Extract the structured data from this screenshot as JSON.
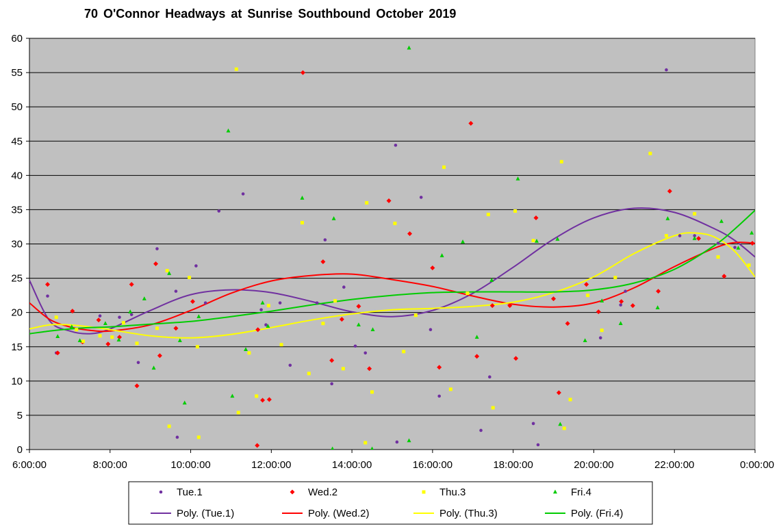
{
  "chart_data": {
    "type": "scatter",
    "title": "70 O'Connor Headways at Sunrise Southbound October 2019",
    "xlabel": "",
    "ylabel": "",
    "x_unit": "time of day",
    "xlim": [
      "6:00:00",
      "0:00:00"
    ],
    "ylim": [
      0,
      60
    ],
    "x_ticks": [
      "6:00:00",
      "8:00:00",
      "10:00:00",
      "12:00:00",
      "14:00:00",
      "16:00:00",
      "18:00:00",
      "20:00:00",
      "22:00:00",
      "0:00:00"
    ],
    "y_ticks": [
      "0",
      "5",
      "10",
      "15",
      "20",
      "25",
      "30",
      "35",
      "40",
      "45",
      "50",
      "55",
      "60"
    ],
    "grid": "horizontal",
    "plot_background": "#c0c0c0",
    "legend_position": "bottom",
    "series": [
      {
        "name": "Tue.1",
        "marker": "circle",
        "color": "#7030a0",
        "points": [
          [
            "6:27",
            22.4
          ],
          [
            "6:40",
            14.1
          ],
          [
            "7:20",
            15.7
          ],
          [
            "7:45",
            19.5
          ],
          [
            "7:57",
            15.4
          ],
          [
            "8:14",
            19.3
          ],
          [
            "8:32",
            19.7
          ],
          [
            "8:42",
            12.7
          ],
          [
            "9:10",
            29.3
          ],
          [
            "9:38",
            23.1
          ],
          [
            "9:40",
            1.8
          ],
          [
            "10:08",
            26.8
          ],
          [
            "10:22",
            21.4
          ],
          [
            "10:42",
            34.8
          ],
          [
            "11:18",
            37.3
          ],
          [
            "11:45",
            20.4
          ],
          [
            "11:52",
            18.2
          ],
          [
            "12:13",
            21.4
          ],
          [
            "12:28",
            12.3
          ],
          [
            "13:08",
            21.4
          ],
          [
            "13:20",
            30.6
          ],
          [
            "13:30",
            9.6
          ],
          [
            "13:48",
            23.7
          ],
          [
            "14:05",
            15.1
          ],
          [
            "14:20",
            14.1
          ],
          [
            "15:05",
            44.4
          ],
          [
            "15:07",
            1.1
          ],
          [
            "15:43",
            36.8
          ],
          [
            "15:57",
            17.5
          ],
          [
            "16:10",
            7.8
          ],
          [
            "17:12",
            2.8
          ],
          [
            "17:25",
            10.6
          ],
          [
            "18:30",
            3.8
          ],
          [
            "18:37",
            0.7
          ],
          [
            "20:10",
            16.3
          ],
          [
            "20:40",
            21.1
          ],
          [
            "20:47",
            23.1
          ],
          [
            "21:48",
            55.4
          ],
          [
            "22:08",
            31.2
          ],
          [
            "22:30",
            31.2
          ],
          [
            "23:05",
            30.1
          ],
          [
            "23:30",
            29.5
          ]
        ],
        "trend": {
          "name": "Poly. (Tue.1)",
          "color": "#7030a0",
          "curve": [
            [
              "6:00",
              24.7
            ],
            [
              "6:30",
              18.8
            ],
            [
              "7:00",
              17.3
            ],
            [
              "7:30",
              16.9
            ],
            [
              "8:00",
              17.6
            ],
            [
              "9:00",
              20.3
            ],
            [
              "10:00",
              22.6
            ],
            [
              "11:00",
              23.3
            ],
            [
              "12:00",
              22.9
            ],
            [
              "13:00",
              21.6
            ],
            [
              "14:00",
              20.1
            ],
            [
              "15:00",
              19.4
            ],
            [
              "16:00",
              20.3
            ],
            [
              "17:00",
              22.8
            ],
            [
              "18:00",
              26.6
            ],
            [
              "19:00",
              30.7
            ],
            [
              "20:00",
              33.8
            ],
            [
              "21:00",
              35.2
            ],
            [
              "22:00",
              34.6
            ],
            [
              "23:00",
              32.2
            ],
            [
              "23:30",
              30.5
            ],
            [
              "0:00",
              28.1
            ]
          ]
        }
      },
      {
        "name": "Wed.2",
        "marker": "diamond",
        "color": "#ff0000",
        "points": [
          [
            "6:27",
            24.1
          ],
          [
            "6:42",
            14.1
          ],
          [
            "7:04",
            20.2
          ],
          [
            "7:19",
            15.7
          ],
          [
            "7:43",
            18.9
          ],
          [
            "7:57",
            15.4
          ],
          [
            "8:14",
            16.4
          ],
          [
            "8:32",
            24.1
          ],
          [
            "8:40",
            9.3
          ],
          [
            "9:08",
            27.1
          ],
          [
            "9:14",
            13.7
          ],
          [
            "9:38",
            17.7
          ],
          [
            "10:03",
            21.6
          ],
          [
            "11:39",
            0.6
          ],
          [
            "11:40",
            17.5
          ],
          [
            "11:47",
            7.2
          ],
          [
            "11:57",
            7.3
          ],
          [
            "12:47",
            55.0
          ],
          [
            "13:17",
            27.4
          ],
          [
            "13:30",
            13.0
          ],
          [
            "13:45",
            19.0
          ],
          [
            "14:10",
            20.9
          ],
          [
            "14:26",
            11.8
          ],
          [
            "14:55",
            36.3
          ],
          [
            "15:26",
            31.5
          ],
          [
            "16:00",
            26.5
          ],
          [
            "16:10",
            12.0
          ],
          [
            "16:57",
            47.6
          ],
          [
            "17:06",
            13.6
          ],
          [
            "17:29",
            21.0
          ],
          [
            "17:55",
            21.0
          ],
          [
            "18:04",
            13.3
          ],
          [
            "18:34",
            33.8
          ],
          [
            "19:00",
            22.0
          ],
          [
            "19:08",
            8.3
          ],
          [
            "19:21",
            18.4
          ],
          [
            "19:49",
            24.1
          ],
          [
            "20:07",
            20.1
          ],
          [
            "20:41",
            21.6
          ],
          [
            "20:58",
            21.0
          ],
          [
            "21:36",
            23.1
          ],
          [
            "21:53",
            37.7
          ],
          [
            "22:36",
            30.8
          ],
          [
            "23:14",
            25.3
          ],
          [
            "23:56",
            30.1
          ]
        ],
        "trend": {
          "name": "Poly. (Wed.2)",
          "color": "#ff0000",
          "curve": [
            [
              "6:00",
              21.4
            ],
            [
              "6:30",
              19.0
            ],
            [
              "7:00",
              17.9
            ],
            [
              "7:30",
              17.4
            ],
            [
              "8:00",
              17.3
            ],
            [
              "9:00",
              18.2
            ],
            [
              "10:00",
              20.3
            ],
            [
              "11:00",
              22.8
            ],
            [
              "12:00",
              24.6
            ],
            [
              "13:00",
              25.4
            ],
            [
              "14:00",
              25.6
            ],
            [
              "15:00",
              24.8
            ],
            [
              "16:00",
              23.8
            ],
            [
              "17:00",
              22.4
            ],
            [
              "18:00",
              21.2
            ],
            [
              "19:00",
              20.8
            ],
            [
              "20:00",
              21.4
            ],
            [
              "21:00",
              23.6
            ],
            [
              "22:00",
              26.7
            ],
            [
              "23:00",
              29.4
            ],
            [
              "23:30",
              30.2
            ],
            [
              "0:00",
              30.1
            ]
          ]
        }
      },
      {
        "name": "Thu.3",
        "marker": "square",
        "color": "#ffff00",
        "points": [
          [
            "6:40",
            19.3
          ],
          [
            "7:10",
            17.5
          ],
          [
            "7:20",
            15.8
          ],
          [
            "7:45",
            16.6
          ],
          [
            "8:03",
            16.4
          ],
          [
            "8:20",
            18.5
          ],
          [
            "8:40",
            15.5
          ],
          [
            "9:10",
            17.7
          ],
          [
            "9:25",
            26.1
          ],
          [
            "9:28",
            3.4
          ],
          [
            "9:58",
            25.1
          ],
          [
            "10:10",
            15.0
          ],
          [
            "10:12",
            1.8
          ],
          [
            "11:08",
            55.5
          ],
          [
            "11:11",
            5.4
          ],
          [
            "11:27",
            14.1
          ],
          [
            "11:38",
            7.8
          ],
          [
            "11:56",
            21.0
          ],
          [
            "12:15",
            15.3
          ],
          [
            "12:46",
            33.1
          ],
          [
            "12:56",
            11.1
          ],
          [
            "13:17",
            18.4
          ],
          [
            "13:35",
            21.7
          ],
          [
            "13:47",
            11.8
          ],
          [
            "14:20",
            1.0
          ],
          [
            "14:22",
            36.0
          ],
          [
            "14:30",
            8.4
          ],
          [
            "15:04",
            33.0
          ],
          [
            "15:17",
            14.3
          ],
          [
            "15:35",
            19.6
          ],
          [
            "16:17",
            41.2
          ],
          [
            "16:27",
            8.8
          ],
          [
            "16:52",
            22.8
          ],
          [
            "17:23",
            34.3
          ],
          [
            "17:30",
            6.1
          ],
          [
            "18:03",
            34.8
          ],
          [
            "18:30",
            30.5
          ],
          [
            "19:12",
            42.0
          ],
          [
            "19:16",
            3.1
          ],
          [
            "19:25",
            7.3
          ],
          [
            "19:51",
            22.5
          ],
          [
            "20:12",
            17.4
          ],
          [
            "20:32",
            25.1
          ],
          [
            "21:24",
            43.2
          ],
          [
            "21:48",
            31.2
          ],
          [
            "22:30",
            34.4
          ],
          [
            "23:05",
            28.1
          ],
          [
            "23:51",
            26.9
          ]
        ],
        "trend": {
          "name": "Poly. (Thu.3)",
          "color": "#ffff00",
          "curve": [
            [
              "6:00",
              17.6
            ],
            [
              "6:30",
              18.2
            ],
            [
              "7:00",
              18.2
            ],
            [
              "7:30",
              17.9
            ],
            [
              "8:00",
              17.5
            ],
            [
              "9:00",
              16.6
            ],
            [
              "10:00",
              16.3
            ],
            [
              "11:00",
              16.8
            ],
            [
              "12:00",
              17.8
            ],
            [
              "13:00",
              18.9
            ],
            [
              "14:00",
              19.8
            ],
            [
              "15:00",
              20.4
            ],
            [
              "16:00",
              20.6
            ],
            [
              "17:00",
              20.9
            ],
            [
              "18:00",
              21.5
            ],
            [
              "19:00",
              22.9
            ],
            [
              "20:00",
              25.2
            ],
            [
              "21:00",
              28.6
            ],
            [
              "22:00",
              31.2
            ],
            [
              "22:30",
              31.6
            ],
            [
              "23:00",
              31.0
            ],
            [
              "23:30",
              28.9
            ],
            [
              "0:00",
              25.2
            ]
          ]
        }
      },
      {
        "name": "Fri.4",
        "marker": "triangle",
        "color": "#00cc00",
        "points": [
          [
            "6:42",
            16.5
          ],
          [
            "7:03",
            17.9
          ],
          [
            "7:15",
            15.9
          ],
          [
            "7:53",
            18.4
          ],
          [
            "8:13",
            16.0
          ],
          [
            "8:30",
            20.1
          ],
          [
            "8:51",
            22.0
          ],
          [
            "9:05",
            11.9
          ],
          [
            "9:28",
            25.7
          ],
          [
            "9:44",
            15.9
          ],
          [
            "9:51",
            6.8
          ],
          [
            "10:12",
            19.4
          ],
          [
            "10:56",
            46.5
          ],
          [
            "11:02",
            7.8
          ],
          [
            "11:22",
            14.6
          ],
          [
            "11:47",
            21.4
          ],
          [
            "11:55",
            18.0
          ],
          [
            "12:46",
            36.7
          ],
          [
            "13:31",
            0.1
          ],
          [
            "13:33",
            33.7
          ],
          [
            "14:10",
            18.2
          ],
          [
            "14:31",
            17.5
          ],
          [
            "14:30",
            0.1
          ],
          [
            "15:25",
            58.6
          ],
          [
            "15:25",
            1.3
          ],
          [
            "16:14",
            28.3
          ],
          [
            "16:45",
            30.3
          ],
          [
            "17:06",
            16.4
          ],
          [
            "17:28",
            24.7
          ],
          [
            "18:07",
            39.5
          ],
          [
            "18:35",
            30.4
          ],
          [
            "19:06",
            30.7
          ],
          [
            "19:10",
            3.7
          ],
          [
            "19:47",
            15.9
          ],
          [
            "20:12",
            21.7
          ],
          [
            "20:40",
            18.4
          ],
          [
            "21:35",
            20.7
          ],
          [
            "21:50",
            33.7
          ],
          [
            "22:30",
            30.8
          ],
          [
            "23:10",
            33.3
          ],
          [
            "23:35",
            29.4
          ],
          [
            "23:55",
            31.6
          ]
        ],
        "trend": {
          "name": "Poly. (Fri.4)",
          "color": "#00cc00",
          "curve": [
            [
              "6:00",
              16.9
            ],
            [
              "6:30",
              17.3
            ],
            [
              "7:00",
              17.6
            ],
            [
              "7:30",
              17.8
            ],
            [
              "8:00",
              17.9
            ],
            [
              "9:00",
              18.3
            ],
            [
              "10:00",
              18.7
            ],
            [
              "11:00",
              19.4
            ],
            [
              "12:00",
              20.2
            ],
            [
              "13:00",
              21.1
            ],
            [
              "14:00",
              21.9
            ],
            [
              "15:00",
              22.5
            ],
            [
              "16:00",
              22.9
            ],
            [
              "17:00",
              23.0
            ],
            [
              "18:00",
              23.0
            ],
            [
              "19:00",
              23.0
            ],
            [
              "20:00",
              23.3
            ],
            [
              "21:00",
              24.3
            ],
            [
              "22:00",
              26.3
            ],
            [
              "23:00",
              29.8
            ],
            [
              "23:30",
              32.2
            ],
            [
              "0:00",
              34.9
            ]
          ]
        }
      }
    ]
  }
}
